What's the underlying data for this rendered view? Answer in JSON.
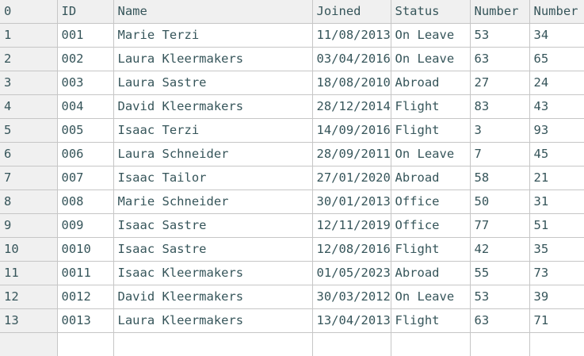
{
  "colors": {
    "text": "#36555a",
    "border": "#c6c6c6",
    "header_bg": "#f0f0f0",
    "cell_bg": "#ffffff"
  },
  "table": {
    "columns": [
      {
        "label": "0"
      },
      {
        "label": "ID"
      },
      {
        "label": "Name"
      },
      {
        "label": "Joined"
      },
      {
        "label": "Status"
      },
      {
        "label": "Number"
      },
      {
        "label": "Number"
      }
    ],
    "rows": [
      [
        "1",
        "001",
        "Marie Terzi",
        "11/08/2013",
        "On Leave",
        "53",
        "34"
      ],
      [
        "2",
        "002",
        "Laura Kleermakers",
        "03/04/2016",
        "On Leave",
        "63",
        "65"
      ],
      [
        "3",
        "003",
        "Laura Sastre",
        "18/08/2010",
        "Abroad",
        "27",
        "24"
      ],
      [
        "4",
        "004",
        "David Kleermakers",
        "28/12/2014",
        "Flight",
        "83",
        "43"
      ],
      [
        "5",
        "005",
        "Isaac Terzi",
        "14/09/2016",
        "Flight",
        "3",
        "93"
      ],
      [
        "6",
        "006",
        "Laura Schneider",
        "28/09/2011",
        "On Leave",
        "7",
        "45"
      ],
      [
        "7",
        "007",
        "Isaac Tailor",
        "27/01/2020",
        "Abroad",
        "58",
        "21"
      ],
      [
        "8",
        "008",
        "Marie Schneider",
        "30/01/2013",
        "Office",
        "50",
        "31"
      ],
      [
        "9",
        "009",
        "Isaac Sastre",
        "12/11/2019",
        "Office",
        "77",
        "51"
      ],
      [
        "10",
        "0010",
        "Isaac Sastre",
        "12/08/2016",
        "Flight",
        "42",
        "35"
      ],
      [
        "11",
        "0011",
        "Isaac Kleermakers",
        "01/05/2023",
        "Abroad",
        "55",
        "73"
      ],
      [
        "12",
        "0012",
        "David Kleermakers",
        "30/03/2012",
        "On Leave",
        "53",
        "39"
      ],
      [
        "13",
        "0013",
        "Laura Kleermakers",
        "13/04/2013",
        "Flight",
        "63",
        "71"
      ]
    ]
  }
}
